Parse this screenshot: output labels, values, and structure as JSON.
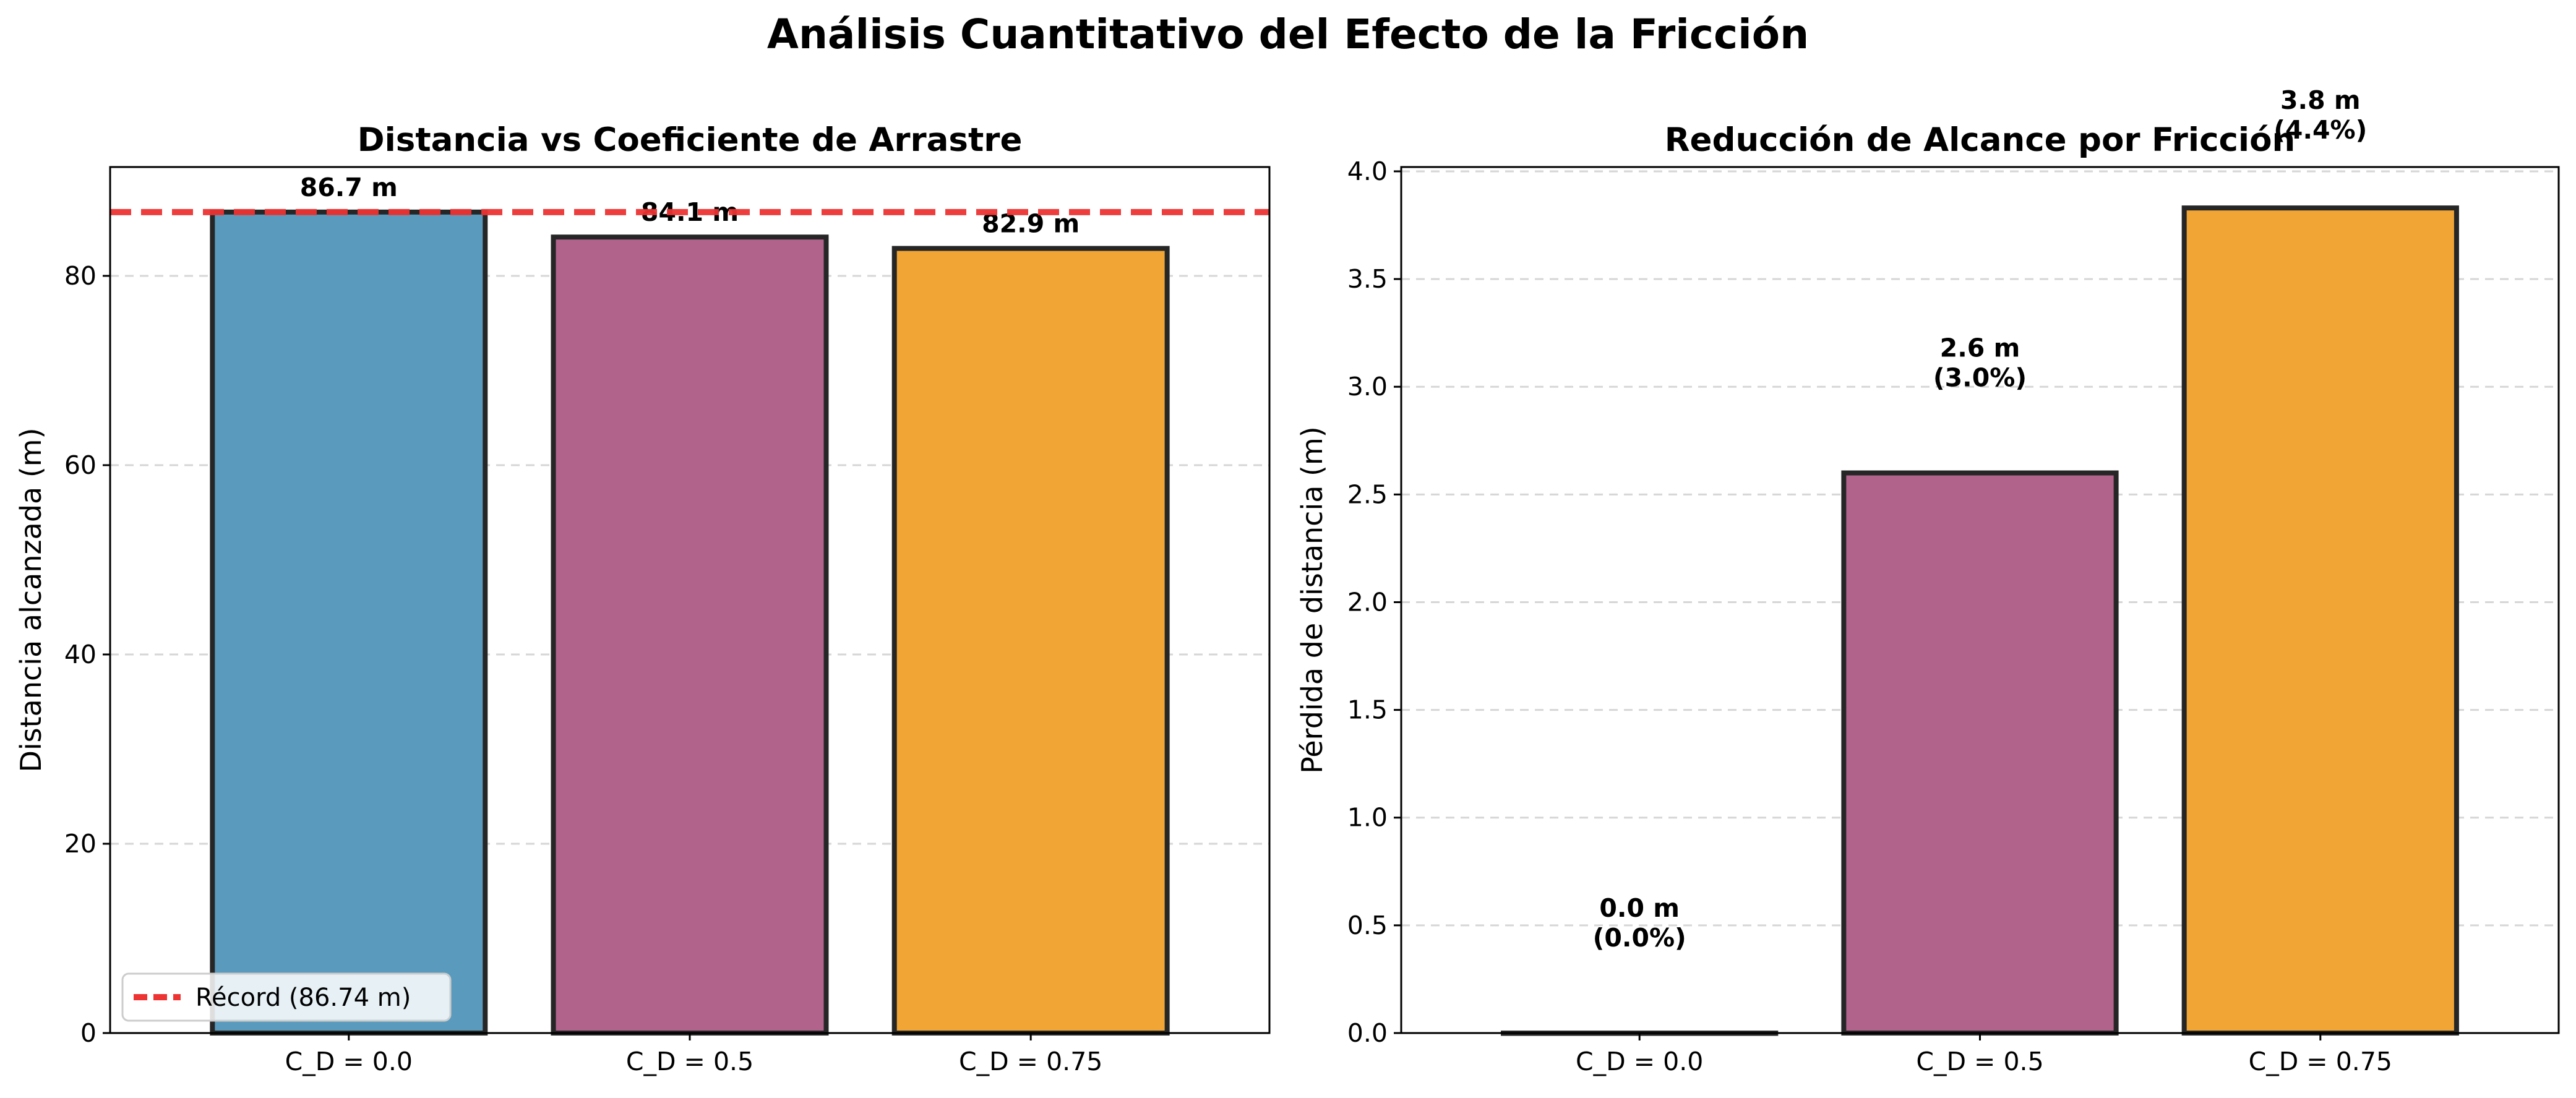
{
  "figure": {
    "title": "Análisis Cuantitativo del Efecto de la Fricción"
  },
  "chart_data": [
    {
      "type": "bar",
      "title": "Distancia vs Coeficiente de Arrastre",
      "xlabel": "",
      "ylabel": "Distancia alcanzada (m)",
      "categories": [
        "C_D = 0.0",
        "C_D = 0.5",
        "C_D = 0.75"
      ],
      "values": [
        86.74,
        84.1,
        82.9
      ],
      "bar_labels": [
        "86.7 m",
        "84.1 m",
        "82.9 m"
      ],
      "colors": [
        "#5a9bbd",
        "#b2638c",
        "#f0a535"
      ],
      "ylim": [
        0,
        91.5
      ],
      "yticks": [
        0,
        20,
        40,
        60,
        80
      ],
      "ytick_labels": [
        "0",
        "20",
        "40",
        "60",
        "80"
      ],
      "grid": true,
      "reference_line": {
        "value": 86.74,
        "color": "#ee3333",
        "style": "dashed",
        "label": "Récord (86.74 m)"
      },
      "legend": {
        "placement": "lower-left",
        "entries": [
          "Récord (86.74 m)"
        ]
      }
    },
    {
      "type": "bar",
      "title": "Reducción de Alcance por Fricción",
      "xlabel": "",
      "ylabel": "Pérdida de distancia (m)",
      "categories": [
        "C_D = 0.0",
        "C_D = 0.5",
        "C_D = 0.75"
      ],
      "values": [
        0.0,
        2.6,
        3.83
      ],
      "bar_labels": [
        "0.0 m\n(0.0%)",
        "2.6 m\n(3.0%)",
        "3.8 m\n(4.4%)"
      ],
      "colors": [
        "#5a9bbd",
        "#b2638c",
        "#f0a535"
      ],
      "ylim": [
        0,
        4.02
      ],
      "yticks": [
        0,
        0.5,
        1.0,
        1.5,
        2.0,
        2.5,
        3.0,
        3.5,
        4.0
      ],
      "ytick_labels": [
        "0.0",
        "0.5",
        "1.0",
        "1.5",
        "2.0",
        "2.5",
        "3.0",
        "3.5",
        "4.0"
      ],
      "grid": true
    }
  ]
}
